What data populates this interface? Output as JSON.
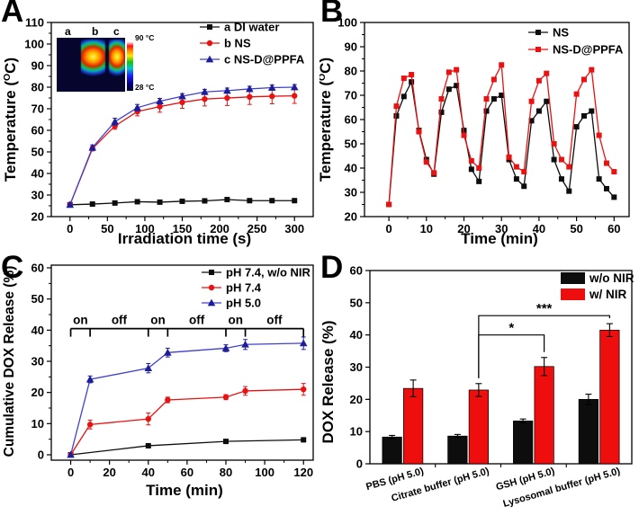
{
  "figure": {
    "background": "#ffffff"
  },
  "panels": [
    {
      "letter": "A"
    },
    {
      "letter": "B"
    },
    {
      "letter": "C"
    },
    {
      "letter": "D"
    }
  ],
  "inset": {
    "labels": [
      "a",
      "b",
      "c"
    ],
    "top_temp": "90 °C",
    "bottom_temp": "28 °C"
  },
  "colors": {
    "black": "#0d0d0d",
    "red": "#e81212",
    "bar_red": "#ee0e0e",
    "blue": "#4040cc",
    "blue_marker": "#1d1d99"
  },
  "chart_data": [
    {
      "id": "A",
      "type": "line",
      "xlabel": "Irradiation time (s)",
      "ylabel": "Temperature (°C)",
      "xlim": [
        -25,
        325
      ],
      "ylim": [
        20,
        110
      ],
      "xticks": [
        0,
        50,
        100,
        150,
        200,
        250,
        300
      ],
      "yticks": [
        20,
        30,
        40,
        50,
        60,
        70,
        80,
        90,
        100,
        110
      ],
      "xminor": [
        25,
        75,
        125,
        175,
        225,
        275
      ],
      "yminor": [
        25,
        35,
        45,
        55,
        65,
        75,
        85,
        95,
        105
      ],
      "x": [
        0,
        30,
        60,
        90,
        120,
        150,
        180,
        210,
        240,
        270,
        300
      ],
      "series": [
        {
          "name": "a DI water",
          "color": "#0d0d0d",
          "marker": "square",
          "values": [
            25.5,
            25.8,
            26.3,
            26.9,
            26.7,
            27.1,
            27.3,
            27.9,
            27.4,
            27.4,
            27.4
          ],
          "errors": [
            0.3,
            0.3,
            0.3,
            0.3,
            0.4,
            0.4,
            0.4,
            0.4,
            0.4,
            0.4,
            0.4
          ]
        },
        {
          "name": "b NS",
          "color": "#e81212",
          "marker": "circle",
          "values": [
            25.5,
            51.5,
            62,
            68.7,
            71,
            73,
            74.5,
            75,
            75.5,
            75.8,
            76
          ],
          "errors": [
            0.4,
            1,
            1.5,
            2,
            2.6,
            2.8,
            3.2,
            3.5,
            3.5,
            3.5,
            3.5
          ]
        },
        {
          "name": "c NS-D@PPFA",
          "color": "#4040cc",
          "marker": "triangle",
          "mcolor": "#1d1d99",
          "values": [
            25.5,
            52,
            64,
            70.5,
            73.5,
            75.8,
            77.8,
            78.4,
            79.2,
            79.8,
            80
          ],
          "errors": [
            0.4,
            1.2,
            1.6,
            1.5,
            1.3,
            1.2,
            1.2,
            1.2,
            1.2,
            1.2,
            1.2
          ]
        }
      ]
    },
    {
      "id": "B",
      "type": "line",
      "xlabel": "Time (min)",
      "ylabel": "Temperature (°C)",
      "xlim": [
        -6.5,
        64
      ],
      "ylim": [
        20,
        100
      ],
      "xticks": [
        0,
        10,
        20,
        30,
        40,
        50,
        60
      ],
      "yticks": [
        20,
        30,
        40,
        50,
        60,
        70,
        80,
        90,
        100
      ],
      "xminor": [
        5,
        15,
        25,
        35,
        45,
        55
      ],
      "yminor": [
        25,
        35,
        45,
        55,
        65,
        75,
        85,
        95
      ],
      "x": [
        0,
        2,
        4,
        6,
        8,
        10,
        12,
        14,
        16,
        18,
        20,
        22,
        24,
        26,
        28,
        30,
        32,
        34,
        36,
        38,
        40,
        42,
        44,
        46,
        48,
        50,
        52,
        54,
        56,
        58,
        60
      ],
      "series": [
        {
          "name": "NS",
          "color": "#0d0d0d",
          "marker": "square",
          "values": [
            25,
            61.5,
            69.5,
            75.5,
            55.5,
            43.5,
            37.5,
            63,
            72.5,
            74,
            55.5,
            39.5,
            34.5,
            63.5,
            68.5,
            70,
            43.5,
            35.5,
            32.5,
            59.5,
            63.5,
            67.5,
            43.5,
            35.5,
            30.5,
            57,
            61.5,
            63.5,
            35.5,
            31.5,
            28
          ],
          "errors": 0.8
        },
        {
          "name": "NS-D@PPFA",
          "color": "#e81212",
          "marker": "square",
          "values": [
            25,
            65.5,
            77,
            78.5,
            55,
            42.5,
            38,
            68.5,
            79.5,
            80.5,
            53.5,
            43,
            40,
            68.5,
            76.5,
            82.5,
            44.5,
            40.5,
            38.5,
            67.5,
            76,
            79,
            50,
            43.5,
            40.5,
            70.5,
            76.5,
            80.5,
            53.5,
            42,
            38.5
          ],
          "errors": 0.8
        }
      ]
    },
    {
      "id": "C",
      "type": "line",
      "xlabel": "Time (min)",
      "ylabel": "Cumulative DOX Release (%)",
      "xlim": [
        -10,
        125
      ],
      "ylim": [
        0,
        60
      ],
      "xticks": [
        0,
        20,
        40,
        60,
        80,
        100,
        120
      ],
      "yticks": [
        0,
        10,
        20,
        30,
        40,
        50,
        60
      ],
      "xminor": [
        10,
        30,
        50,
        70,
        90,
        110
      ],
      "yminor": [
        5,
        15,
        25,
        35,
        45,
        55
      ],
      "series": [
        {
          "name": "pH 7.4, w/o NIR",
          "color": "#0d0d0d",
          "marker": "square",
          "x": [
            0,
            40,
            80,
            120
          ],
          "values": [
            0,
            2.9,
            4.3,
            4.8
          ],
          "errors": [
            0,
            0.3,
            0.4,
            0.5
          ]
        },
        {
          "name": "pH 7.4",
          "color": "#e81212",
          "marker": "circle",
          "x": [
            0,
            10,
            40,
            50,
            80,
            90,
            120
          ],
          "values": [
            0,
            9.7,
            11.5,
            17.6,
            18.5,
            20.5,
            21
          ],
          "errors": [
            0,
            1.4,
            1.9,
            0.9,
            0.8,
            1.4,
            1.9
          ]
        },
        {
          "name": "pH 5.0",
          "color": "#4040cc",
          "marker": "triangle",
          "mcolor": "#1d1d99",
          "x": [
            0,
            10,
            40,
            50,
            80,
            90,
            120
          ],
          "values": [
            0,
            24.2,
            27.8,
            32.8,
            34.2,
            35.4,
            35.8
          ],
          "errors": [
            0,
            1.1,
            1.5,
            1.4,
            1.1,
            1.6,
            2
          ]
        }
      ],
      "nir_bracket": {
        "y": 40.5,
        "ticks": [
          0,
          10,
          40,
          50,
          80,
          90,
          120
        ],
        "segments": [
          {
            "label": "on",
            "from": 0,
            "to": 10
          },
          {
            "label": "off",
            "from": 10,
            "to": 40
          },
          {
            "label": "on",
            "from": 40,
            "to": 50
          },
          {
            "label": "off",
            "from": 50,
            "to": 80
          },
          {
            "label": "on",
            "from": 80,
            "to": 90
          },
          {
            "label": "off",
            "from": 90,
            "to": 120
          }
        ]
      }
    },
    {
      "id": "D",
      "type": "bar",
      "ylabel": "DOX Release (%)",
      "ylim": [
        0,
        60
      ],
      "yticks": [
        0,
        10,
        20,
        30,
        40,
        50,
        60
      ],
      "categories": [
        "PBS (pH 5.0)",
        "Citrate buffer (pH 5.0)",
        "GSH (pH 5.0)",
        "Lysosomal buffer (pH 5.0)"
      ],
      "series": [
        {
          "name": "w/o NIR",
          "color": "#0d0d0d",
          "values": [
            8.3,
            8.6,
            13.3,
            20.0
          ],
          "errors": [
            0.5,
            0.5,
            0.6,
            1.6
          ]
        },
        {
          "name": "w/ NIR",
          "color": "#ee0e0e",
          "values": [
            23.4,
            22.9,
            30.2,
            41.5
          ],
          "errors": [
            2.6,
            2.0,
            2.8,
            2.0
          ]
        }
      ],
      "significance": [
        {
          "label": "*",
          "from": 1,
          "to": 2,
          "y": 40
        },
        {
          "label": "***",
          "from": 1,
          "to": 3,
          "y": 46
        }
      ]
    }
  ]
}
